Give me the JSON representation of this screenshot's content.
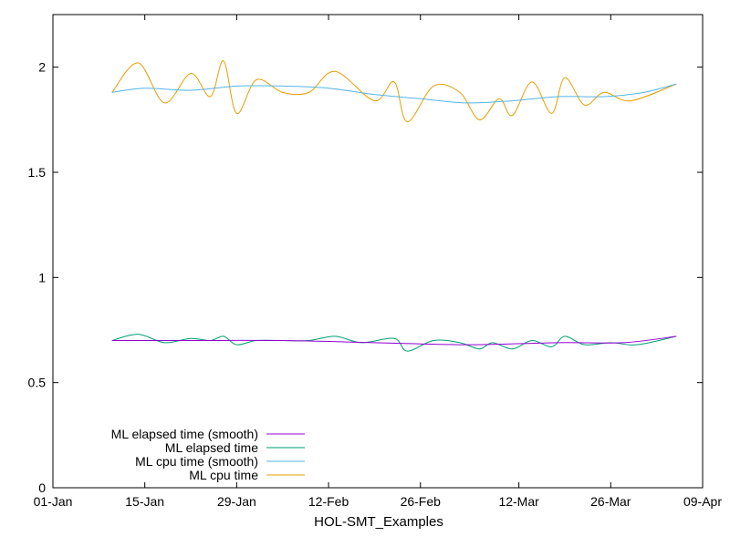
{
  "chart_data": {
    "type": "line",
    "title": "",
    "xlabel": "HOL-SMT_Examples",
    "ylabel": "",
    "grid": false,
    "legend_position": "bottom-left",
    "x_axis": {
      "type": "date",
      "range": [
        "2024-01-01",
        "2024-04-09"
      ],
      "tick_values": [
        "2024-01-01",
        "2024-01-15",
        "2024-01-29",
        "2024-02-12",
        "2024-02-26",
        "2024-03-12",
        "2024-03-26",
        "2024-04-09"
      ],
      "tick_labels": [
        "01-Jan",
        "15-Jan",
        "29-Jan",
        "12-Feb",
        "26-Feb",
        "12-Mar",
        "26-Mar",
        "09-Apr"
      ]
    },
    "y_axis": {
      "range": [
        0,
        2.25
      ],
      "tick_values": [
        0,
        0.5,
        1,
        1.5,
        2
      ],
      "tick_labels": [
        "0",
        "0.5",
        "1",
        "1.5",
        "2"
      ]
    },
    "legend_order": [
      "ML elapsed time (smooth)",
      "ML elapsed time",
      "ML cpu time (smooth)",
      "ML cpu time"
    ],
    "series": [
      {
        "name": "ML cpu time",
        "color": "#e69f00",
        "smooth_curve": true,
        "points": [
          [
            "2024-01-10",
            1.88
          ],
          [
            "2024-01-14",
            2.02
          ],
          [
            "2024-01-18",
            1.83
          ],
          [
            "2024-01-22",
            1.97
          ],
          [
            "2024-01-25",
            1.86
          ],
          [
            "2024-01-27",
            2.03
          ],
          [
            "2024-01-29",
            1.78
          ],
          [
            "2024-02-01",
            1.94
          ],
          [
            "2024-02-05",
            1.88
          ],
          [
            "2024-02-09",
            1.88
          ],
          [
            "2024-02-13",
            1.98
          ],
          [
            "2024-02-19",
            1.84
          ],
          [
            "2024-02-22",
            1.93
          ],
          [
            "2024-02-24",
            1.74
          ],
          [
            "2024-02-28",
            1.91
          ],
          [
            "2024-03-03",
            1.88
          ],
          [
            "2024-03-06",
            1.75
          ],
          [
            "2024-03-09",
            1.85
          ],
          [
            "2024-03-11",
            1.77
          ],
          [
            "2024-03-14",
            1.93
          ],
          [
            "2024-03-17",
            1.78
          ],
          [
            "2024-03-19",
            1.95
          ],
          [
            "2024-03-22",
            1.82
          ],
          [
            "2024-03-25",
            1.88
          ],
          [
            "2024-03-29",
            1.84
          ],
          [
            "2024-04-05",
            1.92
          ]
        ]
      },
      {
        "name": "ML cpu time (smooth)",
        "color": "#56b4e9",
        "smooth_curve": true,
        "points": [
          [
            "2024-01-10",
            1.88
          ],
          [
            "2024-01-15",
            1.9
          ],
          [
            "2024-01-22",
            1.89
          ],
          [
            "2024-01-29",
            1.91
          ],
          [
            "2024-02-05",
            1.91
          ],
          [
            "2024-02-12",
            1.9
          ],
          [
            "2024-02-19",
            1.87
          ],
          [
            "2024-02-26",
            1.85
          ],
          [
            "2024-03-04",
            1.83
          ],
          [
            "2024-03-11",
            1.84
          ],
          [
            "2024-03-18",
            1.86
          ],
          [
            "2024-03-25",
            1.86
          ],
          [
            "2024-03-31",
            1.88
          ],
          [
            "2024-04-05",
            1.92
          ]
        ]
      },
      {
        "name": "ML elapsed time",
        "color": "#009e73",
        "smooth_curve": true,
        "points": [
          [
            "2024-01-10",
            0.7
          ],
          [
            "2024-01-14",
            0.73
          ],
          [
            "2024-01-18",
            0.69
          ],
          [
            "2024-01-22",
            0.71
          ],
          [
            "2024-01-25",
            0.7
          ],
          [
            "2024-01-27",
            0.72
          ],
          [
            "2024-01-29",
            0.68
          ],
          [
            "2024-02-01",
            0.7
          ],
          [
            "2024-02-05",
            0.7
          ],
          [
            "2024-02-09",
            0.7
          ],
          [
            "2024-02-13",
            0.72
          ],
          [
            "2024-02-17",
            0.69
          ],
          [
            "2024-02-22",
            0.71
          ],
          [
            "2024-02-24",
            0.65
          ],
          [
            "2024-02-28",
            0.7
          ],
          [
            "2024-03-03",
            0.69
          ],
          [
            "2024-03-06",
            0.66
          ],
          [
            "2024-03-08",
            0.69
          ],
          [
            "2024-03-11",
            0.66
          ],
          [
            "2024-03-14",
            0.7
          ],
          [
            "2024-03-17",
            0.67
          ],
          [
            "2024-03-19",
            0.72
          ],
          [
            "2024-03-22",
            0.68
          ],
          [
            "2024-03-26",
            0.69
          ],
          [
            "2024-03-30",
            0.68
          ],
          [
            "2024-04-05",
            0.72
          ]
        ]
      },
      {
        "name": "ML elapsed time (smooth)",
        "color": "#9400d3",
        "smooth_curve": true,
        "points": [
          [
            "2024-01-10",
            0.7
          ],
          [
            "2024-01-22",
            0.7
          ],
          [
            "2024-02-05",
            0.7
          ],
          [
            "2024-02-19",
            0.69
          ],
          [
            "2024-03-04",
            0.68
          ],
          [
            "2024-03-18",
            0.69
          ],
          [
            "2024-03-28",
            0.69
          ],
          [
            "2024-04-05",
            0.72
          ]
        ]
      }
    ]
  }
}
